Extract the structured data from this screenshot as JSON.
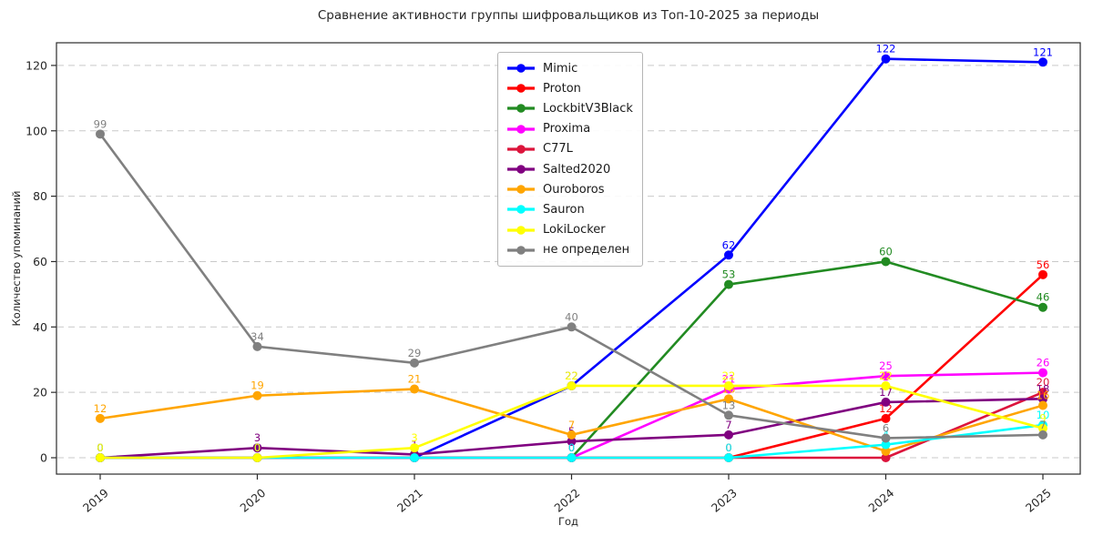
{
  "title": "Сравнение активности группы шифровальщиков из Топ-10-2025 за периоды",
  "chart_data": {
    "type": "line",
    "x": [
      2019,
      2020,
      2021,
      2022,
      2023,
      2024,
      2025
    ],
    "xlabel": "Год",
    "ylabel": "Количество упоминаний",
    "yticks": [
      0,
      20,
      40,
      60,
      80,
      100,
      120
    ],
    "ylim": [
      -5,
      127
    ],
    "grid": "horizontal-dashed",
    "legend_position": "upper-center-inside",
    "x_tick_rotation": 45,
    "point_labels": true,
    "series": [
      {
        "name": "Mimic",
        "color": "#0000ff",
        "values": [
          0,
          0,
          0,
          22,
          62,
          122,
          121
        ]
      },
      {
        "name": "Proton",
        "color": "#ff0000",
        "values": [
          0,
          0,
          0,
          0,
          0,
          12,
          56
        ]
      },
      {
        "name": "LockbitV3Black",
        "color": "#228b22",
        "values": [
          0,
          0,
          0,
          0,
          53,
          60,
          46
        ]
      },
      {
        "name": "Proxima",
        "color": "#ff00ff",
        "values": [
          0,
          0,
          0,
          0,
          21,
          25,
          26
        ]
      },
      {
        "name": "C77L",
        "color": "#dc143c",
        "values": [
          0,
          0,
          0,
          0,
          0,
          0,
          20
        ]
      },
      {
        "name": "Salted2020",
        "color": "#800080",
        "values": [
          0,
          3,
          1,
          5,
          7,
          17,
          18
        ]
      },
      {
        "name": "Ouroboros",
        "color": "#ffa500",
        "values": [
          12,
          19,
          21,
          7,
          18,
          2,
          16
        ]
      },
      {
        "name": "Sauron",
        "color": "#00ffff",
        "values": [
          0,
          0,
          0,
          0,
          0,
          4,
          10
        ]
      },
      {
        "name": "LokiLocker",
        "color": "#ffff00",
        "values": [
          0,
          0,
          3,
          22,
          22,
          22,
          9
        ]
      },
      {
        "name": "не определен",
        "color": "#808080",
        "values": [
          99,
          34,
          29,
          40,
          13,
          6,
          7
        ]
      }
    ]
  }
}
